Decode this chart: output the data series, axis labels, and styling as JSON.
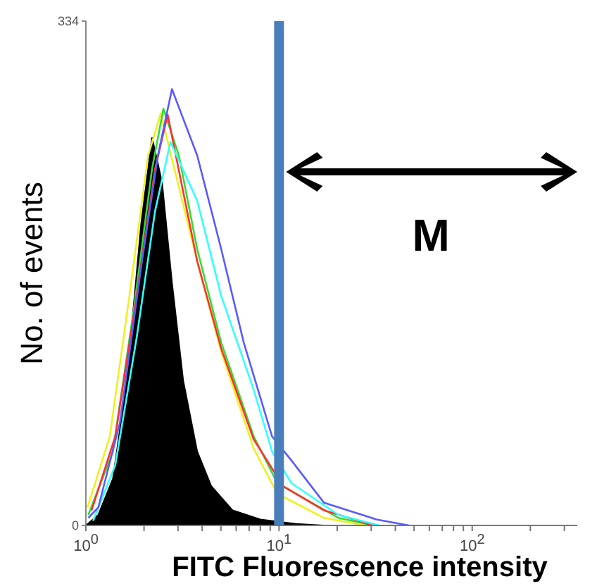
{
  "chart_data": {
    "type": "line",
    "xlabel": "FITC Fluorescence intensity",
    "ylabel": "No. of events",
    "log": "x",
    "xlim": [
      1,
      350
    ],
    "xticks": [
      {
        "value": 1,
        "label": "10$^{0}$"
      },
      {
        "value": 2,
        "label": null
      },
      {
        "value": 3,
        "label": null
      },
      {
        "value": 4,
        "label": null
      },
      {
        "value": 5,
        "label": null
      },
      {
        "value": 6,
        "label": null
      },
      {
        "value": 7,
        "label": null
      },
      {
        "value": 8,
        "label": null
      },
      {
        "value": 9,
        "label": null
      },
      {
        "value": 10,
        "label": "10$^{1}$"
      },
      {
        "value": 20,
        "label": null
      },
      {
        "value": 30,
        "label": null
      },
      {
        "value": 40,
        "label": null
      },
      {
        "value": 50,
        "label": null
      },
      {
        "value": 60,
        "label": null
      },
      {
        "value": 70,
        "label": null
      },
      {
        "value": 80,
        "label": null
      },
      {
        "value": 90,
        "label": null
      },
      {
        "value": 100,
        "label": "10$^{2}$"
      },
      {
        "value": 200,
        "label": null
      },
      {
        "value": 300,
        "label": null
      }
    ],
    "ylim": [
      0,
      334
    ],
    "yticks": [
      0,
      334
    ],
    "series": [
      {
        "type": "area",
        "color": "#000000",
        "x": [
          1.0,
          1.16,
          1.38,
          1.63,
          1.93,
          2.2,
          2.48,
          2.79,
          3.19,
          3.77,
          4.46,
          5.75,
          8.0,
          12.2,
          17
        ],
        "values": [
          0,
          7,
          31,
          96,
          199,
          257,
          227,
          161,
          96,
          49,
          26,
          10,
          4,
          1,
          0
        ]
      },
      {
        "color": "#f0f020",
        "x": [
          1.02,
          1.33,
          1.68,
          2.1,
          2.44,
          3.77,
          5.02,
          7.39,
          9.8,
          17.1,
          28
        ],
        "values": [
          12,
          59,
          152,
          245,
          273,
          175,
          115,
          51,
          21,
          5,
          0
        ]
      },
      {
        "color": "#33dd33",
        "x": [
          1.03,
          1.38,
          1.77,
          2.2,
          2.52,
          3.03,
          3.77,
          5.02,
          7.39,
          9.8,
          20.3,
          30.8
        ],
        "values": [
          7,
          49,
          143,
          236,
          276,
          245,
          183,
          121,
          59,
          28,
          5,
          0
        ]
      },
      {
        "color": "#ff3030",
        "x": [
          1.07,
          1.42,
          1.83,
          2.28,
          2.65,
          3.77,
          5.02,
          7.39,
          10.5,
          17.1,
          30.8
        ],
        "values": [
          10,
          59,
          152,
          236,
          272,
          175,
          117,
          57,
          26,
          10,
          0
        ]
      },
      {
        "color": "#33ffff",
        "x": [
          1.09,
          1.42,
          1.83,
          2.28,
          2.74,
          3.77,
          5.02,
          7.39,
          9.2,
          11.6,
          20.3,
          33
        ],
        "values": [
          3,
          40,
          124,
          208,
          254,
          215,
          152,
          90,
          49,
          28,
          7,
          0
        ]
      },
      {
        "color": "#5a5aff",
        "x": [
          1.03,
          1.16,
          1.5,
          1.93,
          2.36,
          2.79,
          3.77,
          5.02,
          6.57,
          9.2,
          11.6,
          17.1,
          31.9,
          47
        ],
        "values": [
          5,
          12,
          68,
          171,
          245,
          289,
          245,
          183,
          121,
          59,
          43,
          15,
          4,
          0
        ]
      }
    ],
    "ref_lines": [
      {
        "axis": "x",
        "value": 10,
        "color": "#4a7ebb"
      }
    ],
    "annotations": [
      "M"
    ]
  }
}
